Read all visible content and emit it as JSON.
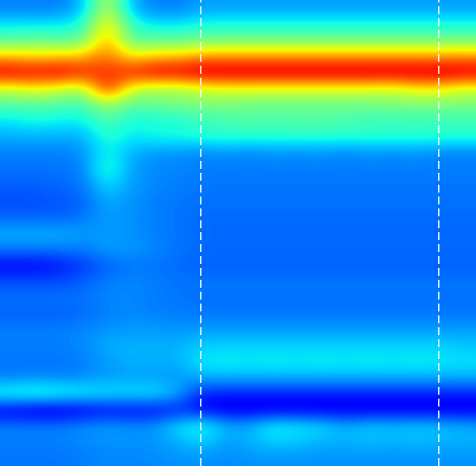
{
  "chart_data": {
    "type": "heatmap",
    "tick_labels": false,
    "color_range": [
      0,
      1
    ],
    "xlim": [
      -0.5,
      19.5
    ],
    "ylim": [
      28.5,
      -0.5
    ],
    "vertical_lines": [
      7.93,
      17.93
    ],
    "cells": [
      [
        0.25,
        0.25,
        0.25,
        0.3,
        0.6,
        0.3,
        0.25,
        0.25,
        0.28,
        0.28,
        0.28,
        0.28,
        0.28,
        0.28,
        0.28,
        0.28,
        0.28,
        0.28,
        0.28,
        0.28
      ],
      [
        0.35,
        0.35,
        0.35,
        0.38,
        0.7,
        0.4,
        0.35,
        0.35,
        0.38,
        0.38,
        0.38,
        0.38,
        0.38,
        0.38,
        0.38,
        0.38,
        0.38,
        0.38,
        0.38,
        0.38
      ],
      [
        0.45,
        0.47,
        0.45,
        0.47,
        0.75,
        0.45,
        0.46,
        0.46,
        0.48,
        0.48,
        0.48,
        0.48,
        0.48,
        0.48,
        0.48,
        0.48,
        0.48,
        0.48,
        0.48,
        0.48
      ],
      [
        0.7,
        0.68,
        0.7,
        0.7,
        0.8,
        0.65,
        0.7,
        0.7,
        0.75,
        0.75,
        0.75,
        0.75,
        0.75,
        0.75,
        0.75,
        0.75,
        0.75,
        0.75,
        0.75,
        0.75
      ],
      [
        0.95,
        0.92,
        0.95,
        0.9,
        0.85,
        0.9,
        0.95,
        0.95,
        0.97,
        0.97,
        0.97,
        0.97,
        0.97,
        0.97,
        0.97,
        0.97,
        0.97,
        0.97,
        0.97,
        0.96
      ],
      [
        0.6,
        0.65,
        0.6,
        0.55,
        0.9,
        0.6,
        0.55,
        0.55,
        0.6,
        0.62,
        0.62,
        0.62,
        0.62,
        0.62,
        0.62,
        0.62,
        0.6,
        0.65,
        0.65,
        0.6
      ],
      [
        0.45,
        0.45,
        0.45,
        0.42,
        0.55,
        0.45,
        0.48,
        0.5,
        0.5,
        0.5,
        0.48,
        0.48,
        0.48,
        0.48,
        0.48,
        0.48,
        0.5,
        0.5,
        0.5,
        0.5
      ],
      [
        0.35,
        0.38,
        0.36,
        0.36,
        0.45,
        0.38,
        0.38,
        0.38,
        0.42,
        0.43,
        0.45,
        0.44,
        0.45,
        0.45,
        0.44,
        0.42,
        0.42,
        0.42,
        0.42,
        0.42
      ],
      [
        0.3,
        0.3,
        0.3,
        0.3,
        0.4,
        0.35,
        0.38,
        0.38,
        0.4,
        0.4,
        0.4,
        0.4,
        0.4,
        0.4,
        0.4,
        0.4,
        0.4,
        0.4,
        0.4,
        0.4
      ],
      [
        0.25,
        0.25,
        0.25,
        0.26,
        0.38,
        0.3,
        0.27,
        0.27,
        0.25,
        0.27,
        0.25,
        0.27,
        0.26,
        0.27,
        0.25,
        0.27,
        0.26,
        0.27,
        0.25,
        0.25
      ],
      [
        0.24,
        0.24,
        0.24,
        0.25,
        0.42,
        0.28,
        0.26,
        0.26,
        0.25,
        0.25,
        0.25,
        0.25,
        0.25,
        0.25,
        0.25,
        0.25,
        0.25,
        0.25,
        0.25,
        0.25
      ],
      [
        0.22,
        0.22,
        0.23,
        0.24,
        0.35,
        0.28,
        0.26,
        0.25,
        0.24,
        0.24,
        0.24,
        0.24,
        0.24,
        0.24,
        0.24,
        0.24,
        0.24,
        0.24,
        0.24,
        0.24
      ],
      [
        0.2,
        0.2,
        0.21,
        0.22,
        0.3,
        0.27,
        0.25,
        0.24,
        0.24,
        0.24,
        0.24,
        0.24,
        0.24,
        0.24,
        0.24,
        0.24,
        0.24,
        0.24,
        0.24,
        0.24
      ],
      [
        0.22,
        0.22,
        0.22,
        0.24,
        0.28,
        0.27,
        0.25,
        0.24,
        0.23,
        0.23,
        0.23,
        0.23,
        0.23,
        0.23,
        0.23,
        0.23,
        0.23,
        0.23,
        0.23,
        0.23
      ],
      [
        0.3,
        0.3,
        0.3,
        0.28,
        0.28,
        0.27,
        0.25,
        0.24,
        0.23,
        0.23,
        0.23,
        0.23,
        0.23,
        0.23,
        0.23,
        0.23,
        0.23,
        0.23,
        0.23,
        0.23
      ],
      [
        0.25,
        0.25,
        0.25,
        0.25,
        0.28,
        0.28,
        0.26,
        0.24,
        0.23,
        0.23,
        0.23,
        0.23,
        0.23,
        0.23,
        0.23,
        0.23,
        0.23,
        0.23,
        0.23,
        0.23
      ],
      [
        0.12,
        0.12,
        0.14,
        0.18,
        0.22,
        0.24,
        0.24,
        0.23,
        0.22,
        0.22,
        0.22,
        0.22,
        0.22,
        0.22,
        0.22,
        0.22,
        0.22,
        0.22,
        0.22,
        0.22
      ],
      [
        0.2,
        0.2,
        0.2,
        0.22,
        0.25,
        0.26,
        0.25,
        0.24,
        0.24,
        0.24,
        0.24,
        0.24,
        0.24,
        0.24,
        0.24,
        0.24,
        0.24,
        0.24,
        0.24,
        0.24
      ],
      [
        0.24,
        0.24,
        0.24,
        0.24,
        0.26,
        0.26,
        0.25,
        0.24,
        0.24,
        0.24,
        0.24,
        0.24,
        0.24,
        0.24,
        0.24,
        0.24,
        0.24,
        0.24,
        0.24,
        0.24
      ],
      [
        0.22,
        0.22,
        0.22,
        0.23,
        0.25,
        0.26,
        0.25,
        0.25,
        0.24,
        0.24,
        0.24,
        0.24,
        0.24,
        0.24,
        0.24,
        0.24,
        0.24,
        0.24,
        0.24,
        0.24
      ],
      [
        0.25,
        0.25,
        0.25,
        0.26,
        0.27,
        0.28,
        0.28,
        0.27,
        0.28,
        0.28,
        0.28,
        0.28,
        0.28,
        0.28,
        0.28,
        0.28,
        0.28,
        0.28,
        0.28,
        0.28
      ],
      [
        0.25,
        0.25,
        0.25,
        0.26,
        0.3,
        0.3,
        0.3,
        0.3,
        0.33,
        0.33,
        0.33,
        0.33,
        0.33,
        0.33,
        0.33,
        0.33,
        0.33,
        0.33,
        0.33,
        0.32
      ],
      [
        0.24,
        0.24,
        0.24,
        0.25,
        0.28,
        0.3,
        0.3,
        0.3,
        0.36,
        0.37,
        0.36,
        0.37,
        0.36,
        0.37,
        0.36,
        0.37,
        0.36,
        0.37,
        0.36,
        0.35
      ],
      [
        0.25,
        0.26,
        0.25,
        0.26,
        0.28,
        0.28,
        0.28,
        0.27,
        0.3,
        0.3,
        0.3,
        0.3,
        0.3,
        0.3,
        0.3,
        0.3,
        0.3,
        0.3,
        0.3,
        0.3
      ],
      [
        0.4,
        0.42,
        0.4,
        0.38,
        0.36,
        0.36,
        0.36,
        0.3,
        0.15,
        0.15,
        0.15,
        0.15,
        0.15,
        0.15,
        0.15,
        0.15,
        0.15,
        0.15,
        0.15,
        0.15
      ],
      [
        0.1,
        0.08,
        0.08,
        0.1,
        0.12,
        0.12,
        0.12,
        0.15,
        0.12,
        0.1,
        0.1,
        0.1,
        0.1,
        0.1,
        0.1,
        0.1,
        0.1,
        0.1,
        0.1,
        0.1
      ],
      [
        0.25,
        0.25,
        0.25,
        0.27,
        0.28,
        0.27,
        0.27,
        0.35,
        0.4,
        0.3,
        0.3,
        0.38,
        0.36,
        0.35,
        0.3,
        0.33,
        0.32,
        0.33,
        0.32,
        0.3
      ],
      [
        0.25,
        0.25,
        0.25,
        0.26,
        0.27,
        0.27,
        0.27,
        0.3,
        0.33,
        0.28,
        0.3,
        0.33,
        0.32,
        0.3,
        0.3,
        0.31,
        0.3,
        0.31,
        0.3,
        0.3
      ],
      [
        0.24,
        0.24,
        0.24,
        0.25,
        0.26,
        0.26,
        0.26,
        0.27,
        0.27,
        0.26,
        0.27,
        0.27,
        0.27,
        0.27,
        0.27,
        0.27,
        0.27,
        0.27,
        0.27,
        0.27
      ]
    ]
  }
}
